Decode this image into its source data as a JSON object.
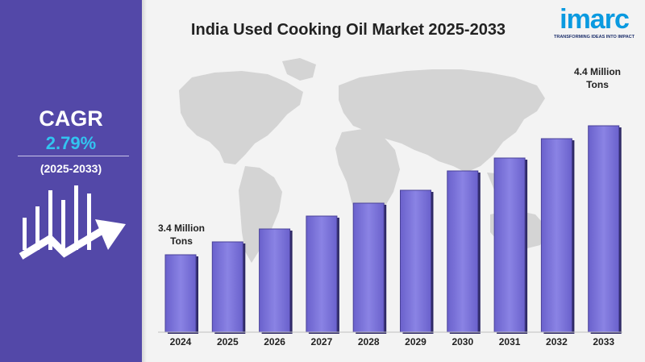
{
  "title": "India Used Cooking Oil Market 2025-2033",
  "logo": {
    "word": "imarc",
    "tagline": "TRANSFORMING IDEAS INTO IMPACT"
  },
  "sidebar": {
    "cagr_label": "CAGR",
    "cagr_value": "2.79%",
    "period": "(2025-2033)",
    "icon": "bar-growth-arrow-icon"
  },
  "colors": {
    "sidebar": "#5348a8",
    "bar_fill": "#7b73d9",
    "accent": "#32c4f0",
    "background": "#f3f3f3",
    "map": "#d4d4d4"
  },
  "callouts": {
    "start": {
      "line1": "3.4 Million",
      "line2": "Tons"
    },
    "end": {
      "line1": "4.4 Million",
      "line2": "Tons"
    }
  },
  "chart_data": {
    "type": "bar",
    "title": "India Used Cooking Oil Market 2025-2033",
    "categories": [
      "2024",
      "2025",
      "2026",
      "2027",
      "2028",
      "2029",
      "2030",
      "2031",
      "2032",
      "2033"
    ],
    "values": [
      3.4,
      3.5,
      3.6,
      3.7,
      3.8,
      3.9,
      4.05,
      4.15,
      4.3,
      4.4
    ],
    "unit": "Million Tons",
    "data_labels": {
      "2024": "3.4 Million Tons",
      "2033": "4.4 Million Tons"
    },
    "ylim": [
      2.8,
      4.6
    ],
    "grid": false,
    "legend": "none"
  }
}
